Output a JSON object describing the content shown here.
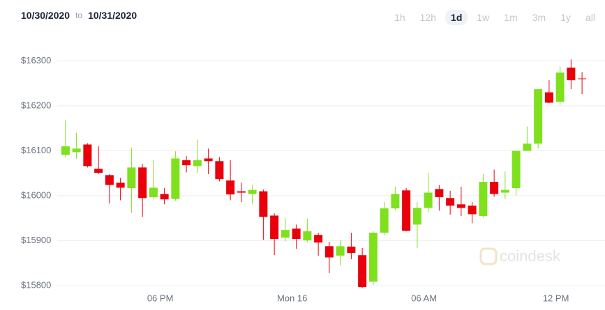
{
  "header": {
    "from": "10/30/2020",
    "sep": "to",
    "to": "10/31/2020",
    "ranges": [
      "1h",
      "12h",
      "1d",
      "1w",
      "1m",
      "3m",
      "1y",
      "all"
    ],
    "active_range": "1d"
  },
  "watermark": "coindesk",
  "chart_data": {
    "type": "candlestick",
    "categories": [
      null,
      null,
      null,
      null,
      null,
      null,
      null,
      null,
      null,
      "06 PM",
      null,
      null,
      null,
      null,
      null,
      null,
      null,
      null,
      null,
      null,
      null,
      "Mon 16",
      null,
      null,
      null,
      null,
      null,
      null,
      null,
      null,
      null,
      null,
      null,
      "06 AM",
      null,
      null,
      null,
      null,
      null,
      null,
      null,
      null,
      null,
      null,
      null,
      "12 PM",
      null,
      null
    ],
    "open": [
      16091,
      16097,
      16114,
      16060,
      16046,
      16029,
      16017,
      16063,
      15997,
      16004,
      15993,
      16079,
      16066,
      16083,
      16077,
      16034,
      16010,
      16004,
      16010,
      15956,
      15907,
      15927,
      15901,
      15913,
      15888,
      15867,
      15887,
      15868,
      15809,
      15918,
      15972,
      16012,
      15936,
      15973,
      16015,
      15995,
      15981,
      15978,
      15955,
      16031,
      16007,
      16017,
      16100,
      16116,
      16230,
      16209,
      16285,
      16261
    ],
    "high": [
      16168,
      16140,
      16117,
      16110,
      16048,
      16040,
      16107,
      16071,
      16079,
      16017,
      16099,
      16088,
      16125,
      16105,
      16086,
      16079,
      16029,
      16024,
      16014,
      15961,
      15950,
      15936,
      15949,
      15918,
      15898,
      15901,
      15918,
      15884,
      15921,
      15986,
      16020,
      16017,
      15986,
      16051,
      16024,
      16011,
      16020,
      15986,
      16048,
      16058,
      16054,
      16100,
      16154,
      16237,
      16257,
      16288,
      16303,
      16275
    ],
    "low": [
      16085,
      16082,
      16063,
      16048,
      15983,
      15990,
      15962,
      15953,
      15993,
      15981,
      15989,
      16052,
      16051,
      16048,
      16032,
      15990,
      15986,
      15981,
      15902,
      15868,
      15899,
      15882,
      15896,
      15867,
      15828,
      15845,
      15859,
      15795,
      15802,
      15913,
      15967,
      15921,
      15884,
      15963,
      15967,
      15958,
      15955,
      15939,
      15952,
      15998,
      15993,
      16001,
      16100,
      16105,
      16206,
      16202,
      16237,
      16226
    ],
    "close": [
      16110,
      16105,
      16066,
      16051,
      16024,
      16018,
      16063,
      15995,
      16018,
      15992,
      16083,
      16068,
      16079,
      16077,
      16037,
      16003,
      16007,
      16013,
      15953,
      15904,
      15924,
      15904,
      15921,
      15896,
      15863,
      15888,
      15873,
      15797,
      15918,
      15972,
      16004,
      15922,
      15973,
      16007,
      15997,
      15978,
      15973,
      15959,
      16031,
      16004,
      16013,
      16100,
      16116,
      16237,
      16207,
      16274,
      16257,
      16260
    ],
    "up_color": "#7fe11d",
    "down_color": "#e8000b",
    "ylim": [
      15760,
      16330
    ],
    "yticks": [
      {
        "value": 15800,
        "label": "$15800"
      },
      {
        "value": 15900,
        "label": "$15900"
      },
      {
        "value": 16000,
        "label": "$16000"
      },
      {
        "value": 16100,
        "label": "$16100"
      },
      {
        "value": 16200,
        "label": "$16200"
      },
      {
        "value": 16300,
        "label": "$16300"
      }
    ],
    "grid": true
  }
}
